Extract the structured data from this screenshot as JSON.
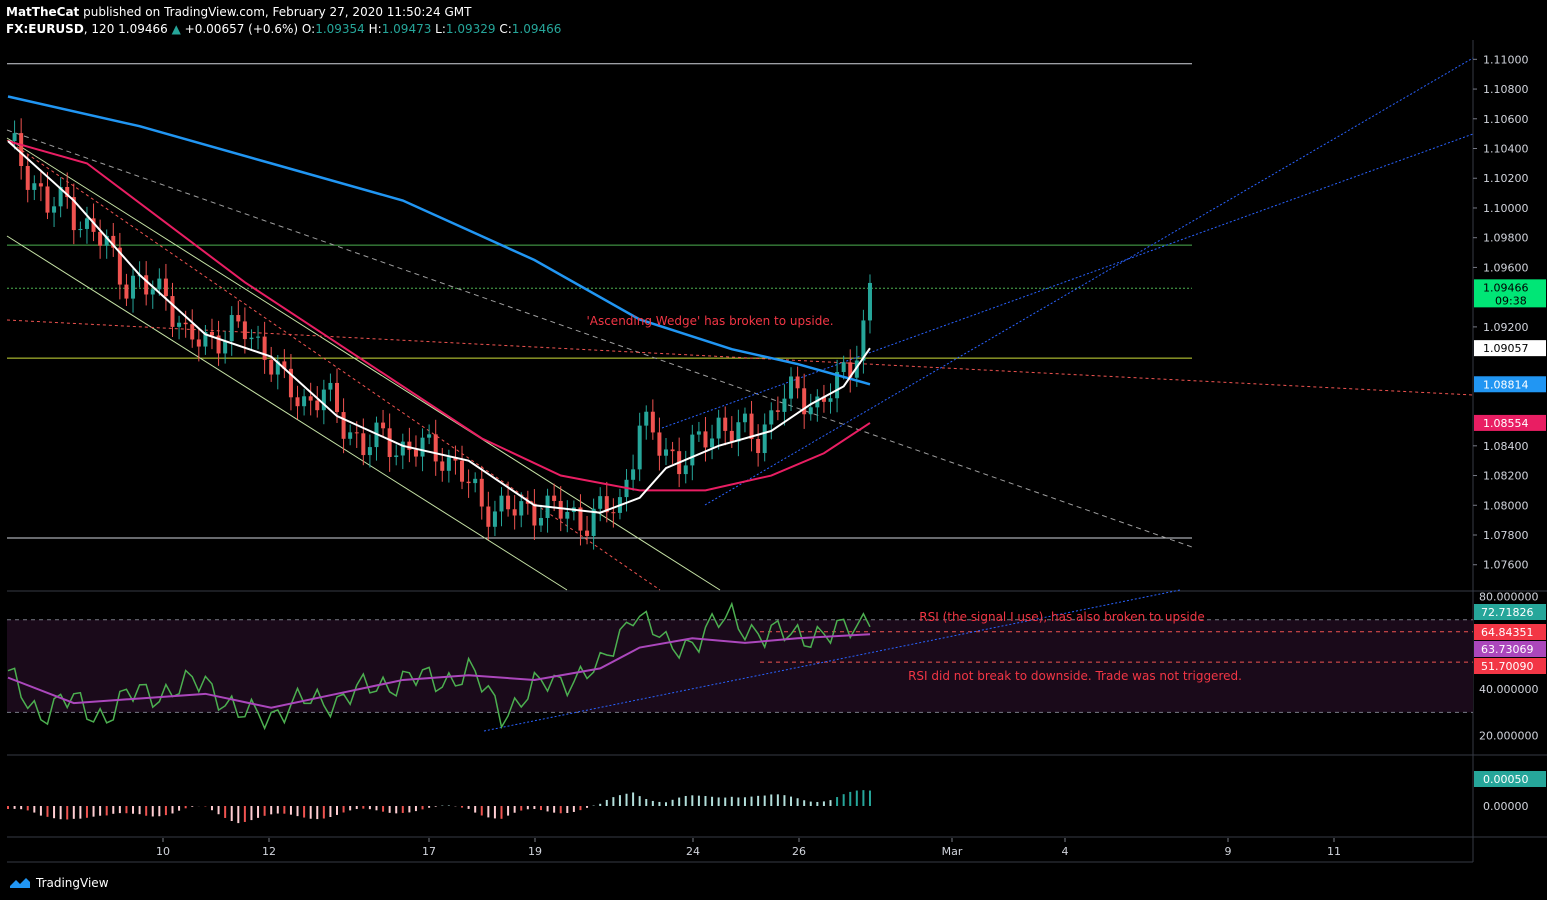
{
  "header": {
    "publisher": "MatTheCat",
    "published_text": "published on TradingView.com, February 27, 2020 11:50:24 GMT",
    "symbol": "FX:EURUSD",
    "interval": "120",
    "last": "1.09466",
    "change": "+0.00657 (+0.6%)",
    "o_label": "O:",
    "o": "1.09354",
    "h_label": "H:",
    "h": "1.09473",
    "l_label": "L:",
    "l": "1.09329",
    "c_label": "C:",
    "c": "1.09466"
  },
  "footer": {
    "brand": "TradingView"
  },
  "colors": {
    "up": "#26a69a",
    "down": "#ef5350",
    "ema_short": "#ffffff",
    "ema_mid": "#e91e63",
    "ema_long": "#2196f3",
    "rsi": "#4caf50",
    "rsi_ma": "#ab47bc",
    "annotation": "#f23645",
    "trend": "#2962ff"
  },
  "chart_data": [
    {
      "type": "candlestick",
      "title": "FX:EURUSD, 120",
      "ylim": [
        1.0743,
        1.1113
      ],
      "y_ticks": [
        "1.11000",
        "1.10800",
        "1.10600",
        "1.10400",
        "1.10200",
        "1.10000",
        "1.09800",
        "1.09600",
        "1.09200",
        "1.08400",
        "1.08200",
        "1.08000",
        "1.07800",
        "1.07600"
      ],
      "x_ticks": [
        "10",
        "12",
        "17",
        "19",
        "24",
        "26",
        "Mar",
        "4",
        "9",
        "11"
      ],
      "price_labels": [
        {
          "value": "1.09466",
          "sub": "09:38",
          "color": "#00e676"
        },
        {
          "value": "1.09057",
          "color": "#ffffff"
        },
        {
          "value": "1.08814",
          "color": "#2196f3"
        },
        {
          "value": "1.08554",
          "color": "#e91e63"
        }
      ],
      "horizontal_levels": [
        1.1097,
        1.0975,
        1.0946,
        1.0899,
        1.0778
      ],
      "close_path": [
        [
          0,
          1.1045
        ],
        [
          3,
          1.1025
        ],
        [
          6,
          1.1
        ],
        [
          9,
          1.1005
        ],
        [
          12,
          1.0985
        ],
        [
          15,
          1.0975
        ],
        [
          18,
          1.095
        ],
        [
          21,
          1.0945
        ],
        [
          24,
          1.0945
        ],
        [
          27,
          1.091
        ],
        [
          30,
          1.0912
        ],
        [
          33,
          1.0915
        ],
        [
          36,
          1.0918
        ],
        [
          39,
          1.0905
        ],
        [
          42,
          1.088
        ],
        [
          45,
          1.087
        ],
        [
          48,
          1.0875
        ],
        [
          51,
          1.0855
        ],
        [
          54,
          1.084
        ],
        [
          57,
          1.0845
        ],
        [
          60,
          1.0838
        ],
        [
          63,
          1.0838
        ],
        [
          66,
          1.0835
        ],
        [
          69,
          1.082
        ],
        [
          72,
          1.08
        ],
        [
          75,
          1.0798
        ],
        [
          78,
          1.0795
        ],
        [
          81,
          1.08
        ],
        [
          84,
          1.0795
        ],
        [
          87,
          1.079
        ],
        [
          90,
          1.0795
        ],
        [
          93,
          1.08
        ],
        [
          96,
          1.0855
        ],
        [
          99,
          1.084
        ],
        [
          102,
          1.083
        ],
        [
          105,
          1.084
        ],
        [
          108,
          1.0855
        ],
        [
          111,
          1.085
        ],
        [
          114,
          1.0845
        ],
        [
          117,
          1.087
        ],
        [
          120,
          1.0875
        ],
        [
          123,
          1.0868
        ],
        [
          126,
          1.088
        ],
        [
          128,
          1.0895
        ],
        [
          130,
          1.092
        ],
        [
          131,
          1.0946
        ]
      ],
      "ema_short": [
        [
          0,
          1.1045
        ],
        [
          10,
          1.1005
        ],
        [
          20,
          1.0955
        ],
        [
          30,
          1.0915
        ],
        [
          40,
          1.09
        ],
        [
          50,
          1.086
        ],
        [
          60,
          1.084
        ],
        [
          70,
          1.083
        ],
        [
          80,
          1.08
        ],
        [
          90,
          1.0795
        ],
        [
          96,
          1.0805
        ],
        [
          100,
          1.0825
        ],
        [
          108,
          1.084
        ],
        [
          116,
          1.085
        ],
        [
          122,
          1.0868
        ],
        [
          127,
          1.088
        ],
        [
          131,
          1.09057
        ]
      ],
      "ema_mid": [
        [
          0,
          1.1045
        ],
        [
          12,
          1.103
        ],
        [
          24,
          1.099
        ],
        [
          36,
          1.095
        ],
        [
          48,
          1.0915
        ],
        [
          60,
          1.088
        ],
        [
          72,
          1.0845
        ],
        [
          84,
          1.082
        ],
        [
          96,
          1.081
        ],
        [
          106,
          1.081
        ],
        [
          116,
          1.082
        ],
        [
          124,
          1.0835
        ],
        [
          131,
          1.08554
        ]
      ],
      "ema_long": [
        [
          0,
          1.1075
        ],
        [
          20,
          1.1055
        ],
        [
          40,
          1.103
        ],
        [
          60,
          1.1005
        ],
        [
          80,
          1.0965
        ],
        [
          96,
          1.0925
        ],
        [
          110,
          1.0905
        ],
        [
          120,
          1.0895
        ],
        [
          131,
          1.08814
        ]
      ]
    },
    {
      "type": "line",
      "title": "RSI",
      "ylim": [
        12,
        82
      ],
      "y_ticks": [
        "80.000000",
        "40.000000",
        "20.000000"
      ],
      "levels": [
        64.84351,
        51.7009
      ],
      "value_labels": [
        {
          "value": "72.71826",
          "color": "#26a69a"
        },
        {
          "value": "64.84351",
          "color": "#f23645"
        },
        {
          "value": "63.73069",
          "color": "#ab47bc"
        },
        {
          "value": "51.70090",
          "color": "#f23645"
        }
      ],
      "rsi": [
        [
          0,
          45
        ],
        [
          5,
          30
        ],
        [
          10,
          35
        ],
        [
          15,
          28
        ],
        [
          20,
          40
        ],
        [
          25,
          38
        ],
        [
          30,
          45
        ],
        [
          35,
          28
        ],
        [
          40,
          30
        ],
        [
          45,
          34
        ],
        [
          50,
          36
        ],
        [
          55,
          40
        ],
        [
          60,
          45
        ],
        [
          65,
          43
        ],
        [
          70,
          48
        ],
        [
          75,
          30
        ],
        [
          80,
          40
        ],
        [
          85,
          45
        ],
        [
          90,
          48
        ],
        [
          95,
          75
        ],
        [
          100,
          58
        ],
        [
          105,
          62
        ],
        [
          110,
          72
        ],
        [
          115,
          62
        ],
        [
          120,
          65
        ],
        [
          125,
          62
        ],
        [
          131,
          72.71826
        ]
      ],
      "rsi_ma": [
        [
          0,
          45
        ],
        [
          10,
          34
        ],
        [
          20,
          36
        ],
        [
          30,
          38
        ],
        [
          40,
          32
        ],
        [
          50,
          38
        ],
        [
          60,
          44
        ],
        [
          70,
          46
        ],
        [
          80,
          44
        ],
        [
          90,
          49
        ],
        [
          96,
          58
        ],
        [
          104,
          62
        ],
        [
          112,
          60
        ],
        [
          120,
          62
        ],
        [
          131,
          63.73069
        ]
      ]
    },
    {
      "type": "bar",
      "title": "Histogram",
      "y_ticks": [
        "0.00000"
      ],
      "value_labels": [
        {
          "value": "0.00050",
          "color": "#26a69a"
        }
      ]
    }
  ],
  "annotations": {
    "wedge": "'Ascending Wedge' has broken to upside.",
    "rsi_up": "RSI (the signal I use), has also broken to upside",
    "rsi_down": "RSI did not break to downside. Trade was not triggered."
  }
}
